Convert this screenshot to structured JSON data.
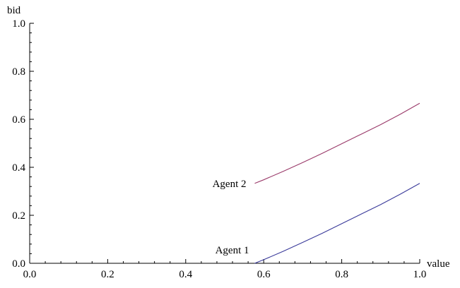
{
  "chart_data": {
    "type": "line",
    "xlabel": "value",
    "ylabel": "bid",
    "xlim": [
      0,
      1
    ],
    "ylim": [
      0,
      1
    ],
    "x_ticks": [
      0.0,
      0.2,
      0.4,
      0.6,
      0.8,
      1.0
    ],
    "y_ticks": [
      0.0,
      0.2,
      0.4,
      0.6,
      0.8,
      1.0
    ],
    "x_tick_labels": [
      "0.0",
      "0.2",
      "0.4",
      "0.6",
      "0.8",
      "1.0"
    ],
    "y_tick_labels": [
      "0.0",
      "0.2",
      "0.4",
      "0.6",
      "0.8",
      "1.0"
    ],
    "grid": false,
    "series": [
      {
        "name": "Agent 1",
        "color": "#3a3a9a",
        "x": [
          0.577,
          0.6,
          0.65,
          0.7,
          0.75,
          0.8,
          0.85,
          0.9,
          0.95,
          1.0
        ],
        "y": [
          0.0,
          0.015,
          0.05,
          0.087,
          0.125,
          0.165,
          0.205,
          0.245,
          0.288,
          0.333
        ]
      },
      {
        "name": "Agent 2",
        "color": "#9a3a6a",
        "x": [
          0.577,
          0.6,
          0.65,
          0.7,
          0.75,
          0.8,
          0.85,
          0.9,
          0.95,
          1.0
        ],
        "y": [
          0.333,
          0.348,
          0.383,
          0.42,
          0.458,
          0.498,
          0.538,
          0.578,
          0.621,
          0.667
        ]
      }
    ]
  }
}
